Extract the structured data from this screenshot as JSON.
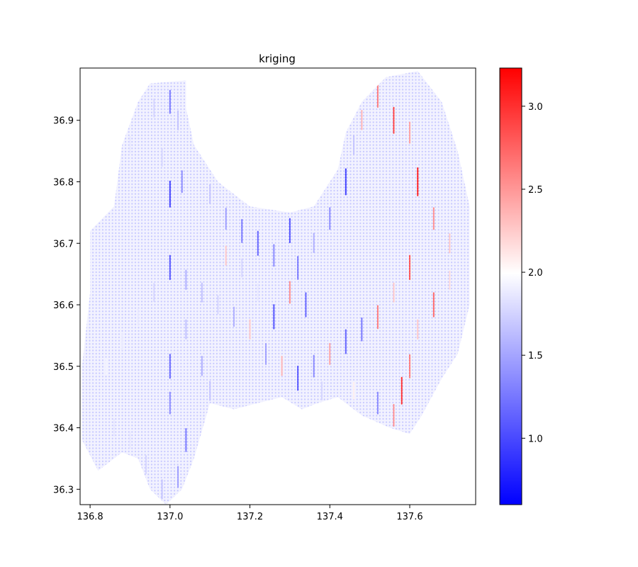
{
  "chart_data": {
    "type": "scatter",
    "title": "kriging",
    "xlabel": "",
    "ylabel": "",
    "xlim": [
      136.775,
      137.765
    ],
    "ylim": [
      36.275,
      36.985
    ],
    "xticks": [
      136.8,
      137.0,
      137.2,
      137.4,
      137.6
    ],
    "xtick_labels": [
      "136.8",
      "137.0",
      "137.2",
      "137.4",
      "137.6"
    ],
    "yticks": [
      36.3,
      36.4,
      36.5,
      36.6,
      36.7,
      36.8,
      36.9
    ],
    "ytick_labels": [
      "36.3",
      "36.4",
      "36.5",
      "36.6",
      "36.7",
      "36.8",
      "36.9"
    ],
    "colormap": "bwr",
    "colorbar": {
      "vmin": 0.6,
      "vmax": 3.23,
      "ticks": [
        1.0,
        1.5,
        2.0,
        2.5,
        3.0
      ],
      "tick_labels": [
        "1.0",
        "1.5",
        "2.0",
        "2.5",
        "3.0"
      ]
    },
    "colors": {
      "low": "#0000ff",
      "mid": "#ffffff",
      "high": "#ff0000"
    },
    "grid": false,
    "region_outline": [
      [
        136.95,
        36.96
      ],
      [
        137.04,
        36.965
      ],
      [
        137.04,
        36.92
      ],
      [
        137.06,
        36.86
      ],
      [
        137.12,
        36.8
      ],
      [
        137.2,
        36.76
      ],
      [
        137.3,
        36.75
      ],
      [
        137.36,
        36.76
      ],
      [
        137.42,
        36.82
      ],
      [
        137.44,
        36.88
      ],
      [
        137.48,
        36.93
      ],
      [
        137.54,
        36.97
      ],
      [
        137.62,
        36.98
      ],
      [
        137.68,
        36.93
      ],
      [
        137.72,
        36.85
      ],
      [
        137.75,
        36.76
      ],
      [
        137.75,
        36.6
      ],
      [
        137.72,
        36.52
      ],
      [
        137.68,
        36.48
      ],
      [
        137.63,
        36.42
      ],
      [
        137.6,
        36.39
      ],
      [
        137.55,
        36.4
      ],
      [
        137.48,
        36.42
      ],
      [
        137.42,
        36.45
      ],
      [
        137.37,
        36.44
      ],
      [
        137.33,
        36.43
      ],
      [
        137.28,
        36.45
      ],
      [
        137.22,
        36.44
      ],
      [
        137.16,
        36.43
      ],
      [
        137.1,
        36.44
      ],
      [
        137.06,
        36.35
      ],
      [
        137.03,
        36.3
      ],
      [
        136.99,
        36.275
      ],
      [
        136.95,
        36.3
      ],
      [
        136.92,
        36.35
      ],
      [
        136.88,
        36.36
      ],
      [
        136.82,
        36.33
      ],
      [
        136.78,
        36.38
      ],
      [
        136.78,
        36.5
      ],
      [
        136.8,
        36.62
      ],
      [
        136.8,
        36.72
      ],
      [
        136.86,
        36.76
      ],
      [
        136.88,
        36.86
      ],
      [
        136.92,
        36.93
      ]
    ],
    "series": [
      {
        "points": [
          [
            136.96,
            36.92,
            1.7
          ],
          [
            137.0,
            36.93,
            1.2
          ],
          [
            137.02,
            36.9,
            1.6
          ],
          [
            136.9,
            36.86,
            1.8
          ],
          [
            136.98,
            36.84,
            1.7
          ],
          [
            137.03,
            36.8,
            1.3
          ],
          [
            137.0,
            36.78,
            0.9
          ],
          [
            137.1,
            36.78,
            1.6
          ],
          [
            137.14,
            36.74,
            1.4
          ],
          [
            137.18,
            36.72,
            1.2
          ],
          [
            137.22,
            36.7,
            1.1
          ],
          [
            137.26,
            36.68,
            1.3
          ],
          [
            137.3,
            36.72,
            1.0
          ],
          [
            137.32,
            36.66,
            1.2
          ],
          [
            137.36,
            36.7,
            1.5
          ],
          [
            137.4,
            36.74,
            1.3
          ],
          [
            137.44,
            36.8,
            0.9
          ],
          [
            137.46,
            36.86,
            1.6
          ],
          [
            137.48,
            36.9,
            2.3
          ],
          [
            137.52,
            36.94,
            2.6
          ],
          [
            137.56,
            36.9,
            2.9
          ],
          [
            137.6,
            36.88,
            2.4
          ],
          [
            137.62,
            36.8,
            3.1
          ],
          [
            137.66,
            36.74,
            2.5
          ],
          [
            137.7,
            36.7,
            2.2
          ],
          [
            137.6,
            36.66,
            2.8
          ],
          [
            137.56,
            36.62,
            2.2
          ],
          [
            137.52,
            36.58,
            2.6
          ],
          [
            137.48,
            36.56,
            1.2
          ],
          [
            137.44,
            36.54,
            1.1
          ],
          [
            137.4,
            36.52,
            2.4
          ],
          [
            137.36,
            36.5,
            1.3
          ],
          [
            137.32,
            36.48,
            1.0
          ],
          [
            137.28,
            36.5,
            2.3
          ],
          [
            137.24,
            36.52,
            1.4
          ],
          [
            137.2,
            36.56,
            2.2
          ],
          [
            137.16,
            36.58,
            1.5
          ],
          [
            137.12,
            36.6,
            1.7
          ],
          [
            137.08,
            36.62,
            1.6
          ],
          [
            137.04,
            36.64,
            1.5
          ],
          [
            137.0,
            36.66,
            1.0
          ],
          [
            136.96,
            36.62,
            1.7
          ],
          [
            136.92,
            36.58,
            1.8
          ],
          [
            136.88,
            36.54,
            1.8
          ],
          [
            136.84,
            36.5,
            1.85
          ],
          [
            136.82,
            36.44,
            1.85
          ],
          [
            136.86,
            36.4,
            1.8
          ],
          [
            136.9,
            36.38,
            1.8
          ],
          [
            136.94,
            36.34,
            1.7
          ],
          [
            136.98,
            36.3,
            1.6
          ],
          [
            137.02,
            36.32,
            1.4
          ],
          [
            137.04,
            36.38,
            1.2
          ],
          [
            137.0,
            36.44,
            1.3
          ],
          [
            137.0,
            36.5,
            1.1
          ],
          [
            137.04,
            36.56,
            1.6
          ],
          [
            137.08,
            36.5,
            1.5
          ],
          [
            137.1,
            36.46,
            1.6
          ],
          [
            137.58,
            36.46,
            3.0
          ],
          [
            137.6,
            36.5,
            2.6
          ],
          [
            137.62,
            36.56,
            2.2
          ],
          [
            137.66,
            36.6,
            2.7
          ],
          [
            137.7,
            36.64,
            2.1
          ],
          [
            137.56,
            36.42,
            2.5
          ],
          [
            137.52,
            36.44,
            1.3
          ],
          [
            137.46,
            36.46,
            2.0
          ],
          [
            137.38,
            36.46,
            1.7
          ],
          [
            137.34,
            36.6,
            1.1
          ],
          [
            137.3,
            36.62,
            2.5
          ],
          [
            137.26,
            36.58,
            1.0
          ],
          [
            137.22,
            36.62,
            1.8
          ],
          [
            137.18,
            36.66,
            1.7
          ],
          [
            137.14,
            36.68,
            2.2
          ]
        ]
      }
    ]
  }
}
